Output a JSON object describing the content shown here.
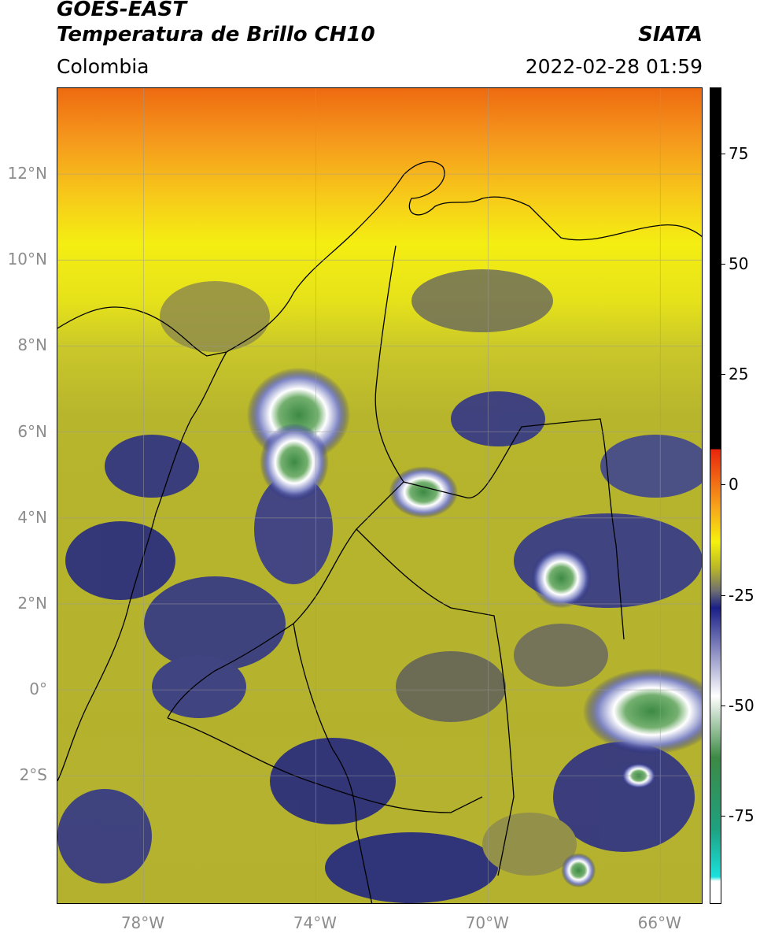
{
  "header": {
    "title_line1": "GOES-EAST",
    "title_line2": "Temperatura de Brillo CH10",
    "brand": "SIATA",
    "region": "Colombia",
    "timestamp": "2022-02-28 01:59"
  },
  "map": {
    "extent": {
      "lon_min": -80,
      "lon_max": -65,
      "lat_min": -5,
      "lat_max": 14
    },
    "lat_ticks": [
      {
        "value": 12,
        "label": "12°N"
      },
      {
        "value": 10,
        "label": "10°N"
      },
      {
        "value": 8,
        "label": "8°N"
      },
      {
        "value": 6,
        "label": "6°N"
      },
      {
        "value": 4,
        "label": "4°N"
      },
      {
        "value": 2,
        "label": "2°N"
      },
      {
        "value": 0,
        "label": "0°"
      },
      {
        "value": -2,
        "label": "2°S"
      }
    ],
    "lon_ticks": [
      {
        "value": -78,
        "label": "78°W"
      },
      {
        "value": -74,
        "label": "74°W"
      },
      {
        "value": -70,
        "label": "70°W"
      },
      {
        "value": -66,
        "label": "66°W"
      }
    ],
    "convective_cells": [
      {
        "lon": -74.4,
        "lat": 6.4,
        "rx": 1.2,
        "ry": 1.1
      },
      {
        "lon": -74.5,
        "lat": 5.3,
        "rx": 0.8,
        "ry": 0.9
      },
      {
        "lon": -71.5,
        "lat": 4.6,
        "rx": 0.8,
        "ry": 0.6
      },
      {
        "lon": -68.3,
        "lat": 2.6,
        "rx": 0.7,
        "ry": 0.7
      },
      {
        "lon": -66.2,
        "lat": -0.5,
        "rx": 1.6,
        "ry": 1.0
      },
      {
        "lon": -67.9,
        "lat": -4.2,
        "rx": 0.4,
        "ry": 0.4
      },
      {
        "lon": -66.5,
        "lat": -2.0,
        "rx": 0.4,
        "ry": 0.3
      }
    ]
  },
  "colorbar": {
    "min": -95,
    "max": 90,
    "ticks": [
      {
        "value": 75,
        "label": "75"
      },
      {
        "value": 50,
        "label": "50"
      },
      {
        "value": 25,
        "label": "25"
      },
      {
        "value": 0,
        "label": "0"
      },
      {
        "value": -25,
        "label": "-25"
      },
      {
        "value": -50,
        "label": "-50"
      },
      {
        "value": -75,
        "label": "-75"
      }
    ],
    "colors": {
      "black": "#000000",
      "red": "#e8250c",
      "orange": "#f7a31c",
      "yellow": "#f5f10d",
      "olive": "#b8b628",
      "gray": "#707070",
      "navy": "#1a1f86",
      "white": "#ffffff",
      "green": "#3c8a44",
      "teal": "#1fa07f",
      "cyan": "#1be0dc"
    }
  }
}
